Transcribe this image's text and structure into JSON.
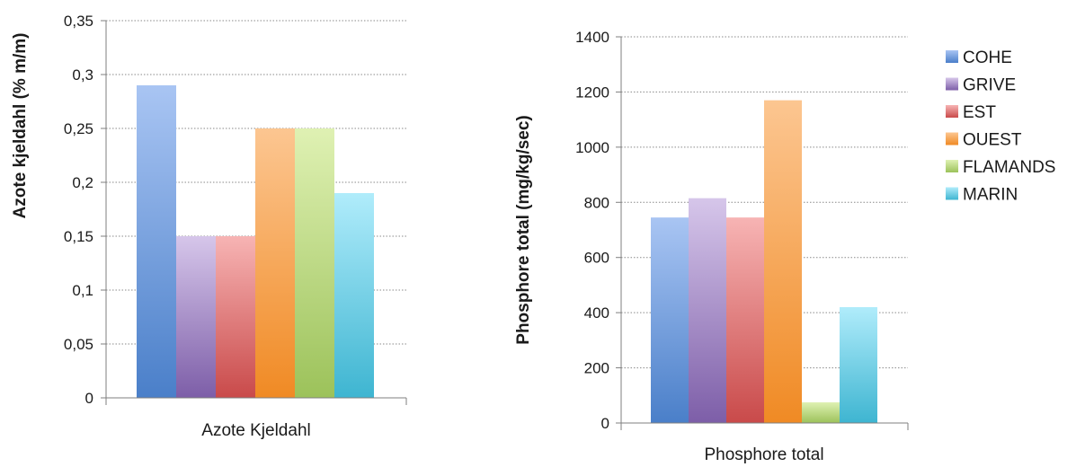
{
  "chart_data": [
    {
      "type": "bar",
      "categories": [
        "Azote Kjeldahl"
      ],
      "ylabel": "Azote kjeldahl (% m/m)",
      "ylim": [
        0,
        0.35
      ],
      "yticks": [
        "0",
        "0,05",
        "0,1",
        "0,15",
        "0,2",
        "0,25",
        "0,3",
        "0,35"
      ],
      "ytick_values": [
        0,
        0.05,
        0.1,
        0.15,
        0.2,
        0.25,
        0.3,
        0.35
      ],
      "grid": true,
      "series": [
        {
          "name": "COHE",
          "values": [
            0.29
          ]
        },
        {
          "name": "GRIVE",
          "values": [
            0.15
          ]
        },
        {
          "name": "EST",
          "values": [
            0.15
          ]
        },
        {
          "name": "OUEST",
          "values": [
            0.25
          ]
        },
        {
          "name": "FLAMANDS",
          "values": [
            0.25
          ]
        },
        {
          "name": "MARIN",
          "values": [
            0.19
          ]
        }
      ]
    },
    {
      "type": "bar",
      "categories": [
        "Phosphore total"
      ],
      "ylabel": "Phosphore total (mg/kg/sec)",
      "ylim": [
        0,
        1400
      ],
      "yticks": [
        "0",
        "200",
        "400",
        "600",
        "800",
        "1000",
        "1200",
        "1400"
      ],
      "ytick_values": [
        0,
        200,
        400,
        600,
        800,
        1000,
        1200,
        1400
      ],
      "grid": true,
      "legend": "right",
      "series": [
        {
          "name": "COHE",
          "values": [
            745
          ]
        },
        {
          "name": "GRIVE",
          "values": [
            815
          ]
        },
        {
          "name": "EST",
          "values": [
            745
          ]
        },
        {
          "name": "OUEST",
          "values": [
            1170
          ]
        },
        {
          "name": "FLAMANDS",
          "values": [
            75
          ]
        },
        {
          "name": "MARIN",
          "values": [
            420
          ]
        }
      ]
    }
  ],
  "legend": [
    "COHE",
    "GRIVE",
    "EST",
    "OUEST",
    "FLAMANDS",
    "MARIN"
  ],
  "colors": {
    "COHE": {
      "light": "#a9c5f3",
      "dark": "#4a7fc9"
    },
    "GRIVE": {
      "light": "#d6c6ea",
      "dark": "#7d5ea8"
    },
    "EST": {
      "light": "#f7b4b4",
      "dark": "#c94a4a"
    },
    "OUEST": {
      "light": "#fcc691",
      "dark": "#f08a24"
    },
    "FLAMANDS": {
      "light": "#dff1b3",
      "dark": "#9cc25a"
    },
    "MARIN": {
      "light": "#b0ecfb",
      "dark": "#3eb5d1"
    }
  }
}
